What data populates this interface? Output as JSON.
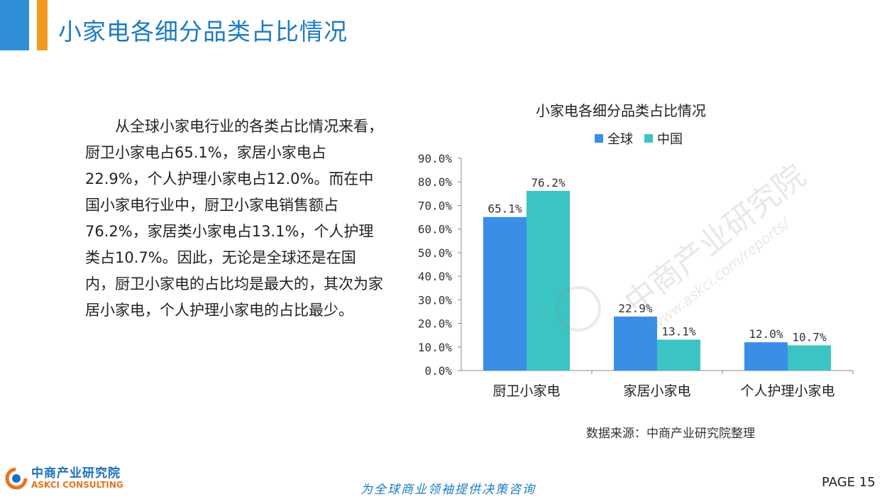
{
  "header": {
    "title": "小家电各细分品类占比情况"
  },
  "body": {
    "paragraph": "从全球小家电行业的各类占比情况来看，厨卫小家电占65.1%，家居小家电占22.9%，个人护理小家电占12.0%。而在中国小家电行业中，厨卫小家电销售额占76.2%，家居类小家电占13.1%，个人护理类占10.7%。因此，无论是全球还是在国内，厨卫小家电的占比均是最大的，其次为家居小家电，个人护理小家电的占比最少。"
  },
  "chart_data": {
    "type": "bar",
    "title": "小家电各细分品类占比情况",
    "categories": [
      "厨卫小家电",
      "家居小家电",
      "个人护理小家电"
    ],
    "series": [
      {
        "name": "全球",
        "values": [
          65.1,
          22.9,
          12.0
        ],
        "labels": [
          "65.1%",
          "22.9%",
          "12.0%"
        ],
        "color": "#3a8ee6"
      },
      {
        "name": "中国",
        "values": [
          76.2,
          13.1,
          10.7
        ],
        "labels": [
          "76.2%",
          "13.1%",
          "10.7%"
        ],
        "color": "#3cc3c3"
      }
    ],
    "yticks": [
      "0.0%",
      "10.0%",
      "20.0%",
      "30.0%",
      "40.0%",
      "50.0%",
      "60.0%",
      "70.0%",
      "80.0%",
      "90.0%"
    ],
    "ylim": [
      0,
      90
    ],
    "grid": false,
    "legend_position": "top"
  },
  "source": "数据来源：中商产业研究院整理",
  "footer": {
    "logo_cn": "中商产业研究院",
    "logo_en": "ASKCI CONSULTING",
    "slogan": "为全球商业领袖提供决策咨询",
    "page": "PAGE  15"
  },
  "watermark": {
    "cn": "中商产业研究院",
    "url": "www.askci.com/reports/"
  }
}
